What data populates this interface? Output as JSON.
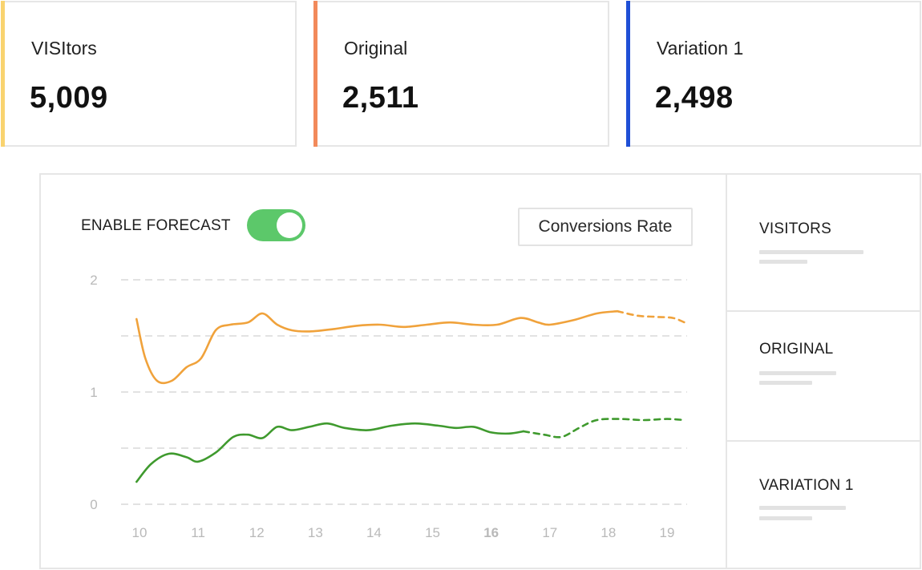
{
  "cards": [
    {
      "label": "VISItors",
      "value": "5,009",
      "accent": "#f9d36f"
    },
    {
      "label": "Original",
      "value": "2,511",
      "accent": "#f28a5b"
    },
    {
      "label": "Variation 1",
      "value": "2,498",
      "accent": "#1f4fd6"
    }
  ],
  "panel": {
    "forecast_label": "ENABLE FORECAST",
    "forecast_enabled": true,
    "metric_select": "Conversions Rate",
    "legend": [
      {
        "title": "VISITORS"
      },
      {
        "title": "ORIGINAL"
      },
      {
        "title": "VARIATION 1"
      }
    ]
  },
  "colors": {
    "toggle_on": "#5cc86a",
    "series_orange": "#f0a23b",
    "series_green": "#3f9a2e",
    "grid": "#e2e2e2",
    "border": "#e6e6e6"
  },
  "chart_data": {
    "type": "line",
    "x": [
      10,
      10.3,
      10.6,
      10.9,
      11.1,
      11.3,
      11.5,
      11.8,
      12.0,
      12.3,
      12.5,
      12.8,
      13.2,
      13.6,
      14.0,
      14.5,
      15.0,
      15.5,
      16.0,
      16.3,
      16.6,
      16.9,
      17.3,
      17.7,
      18.0,
      18.3,
      18.7,
      19.0,
      19.3
    ],
    "x_ticks": [
      "10",
      "11",
      "12",
      "13",
      "14",
      "15",
      "16",
      "17",
      "18",
      "19"
    ],
    "x_tick_values": [
      10,
      11,
      12,
      13,
      14,
      15,
      16,
      17,
      18,
      19
    ],
    "highlight_tick": "16",
    "y_ticks": [
      "0",
      "1",
      "2"
    ],
    "y_tick_values": [
      0,
      1,
      2
    ],
    "y_gridlines": [
      0,
      0.5,
      1,
      1.5,
      2
    ],
    "ylim": [
      0,
      2
    ],
    "xlim": [
      9.9,
      19.3
    ],
    "grid": true,
    "series": [
      {
        "color": "#f0a23b",
        "x": [
          9.95,
          10.1,
          10.3,
          10.55,
          10.8,
          11.05,
          11.3,
          11.55,
          11.85,
          12.1,
          12.35,
          12.6,
          12.9,
          13.3,
          13.7,
          14.1,
          14.5,
          14.9,
          15.3,
          15.7,
          16.1,
          16.5,
          16.8,
          17.0,
          17.4,
          17.8,
          18.15
        ],
        "values": [
          1.65,
          1.3,
          1.1,
          1.1,
          1.22,
          1.3,
          1.55,
          1.6,
          1.62,
          1.7,
          1.6,
          1.55,
          1.54,
          1.56,
          1.59,
          1.6,
          1.58,
          1.6,
          1.62,
          1.6,
          1.6,
          1.66,
          1.62,
          1.6,
          1.64,
          1.7,
          1.72
        ],
        "forecast_x": [
          18.15,
          18.5,
          18.8,
          19.1,
          19.3
        ],
        "forecast_values": [
          1.72,
          1.68,
          1.67,
          1.66,
          1.62
        ]
      },
      {
        "color": "#3f9a2e",
        "x": [
          9.95,
          10.2,
          10.5,
          10.8,
          11.0,
          11.3,
          11.6,
          11.85,
          12.1,
          12.35,
          12.6,
          12.9,
          13.2,
          13.5,
          13.9,
          14.3,
          14.7,
          15.1,
          15.4,
          15.7,
          16.0,
          16.3,
          16.55
        ],
        "values": [
          0.2,
          0.36,
          0.45,
          0.42,
          0.38,
          0.46,
          0.6,
          0.62,
          0.59,
          0.69,
          0.66,
          0.69,
          0.72,
          0.68,
          0.66,
          0.7,
          0.72,
          0.7,
          0.68,
          0.69,
          0.64,
          0.63,
          0.65
        ],
        "forecast_x": [
          16.55,
          16.9,
          17.2,
          17.5,
          17.8,
          18.2,
          18.6,
          19.0,
          19.3
        ],
        "forecast_values": [
          0.65,
          0.62,
          0.6,
          0.68,
          0.75,
          0.76,
          0.75,
          0.76,
          0.75
        ]
      }
    ]
  }
}
